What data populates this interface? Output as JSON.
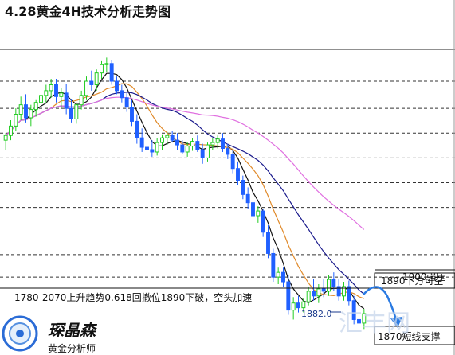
{
  "title": "4.28黄金4H技术分析走势图",
  "annotations": {
    "trend_note": "1780-2070上升趋势0.618回撤位1890下破，空头加速",
    "resistance_1900": "1900强压",
    "resistance_1890": "1890下方可空",
    "support_1870": "1870短线支撑",
    "low_label": "1882.0"
  },
  "branding": {
    "logo_name": "琛晶森",
    "logo_subtitle": "黄金分析师",
    "watermark": "汇丰网"
  },
  "colors": {
    "bull": "#22cc22",
    "bear": "#2060ff",
    "ma_short": "#111111",
    "ma_mid": "#e08a2a",
    "ma_long": "#1a1a8c",
    "ma_slow": "#e070e0",
    "arrow": "#2a7ae2"
  },
  "chart_data": {
    "type": "candlestick",
    "candles": [
      {
        "o": 1908,
        "h": 1914,
        "l": 1900,
        "c": 1912
      },
      {
        "o": 1912,
        "h": 1925,
        "l": 1908,
        "c": 1920
      },
      {
        "o": 1920,
        "h": 1935,
        "l": 1916,
        "c": 1930
      },
      {
        "o": 1930,
        "h": 1945,
        "l": 1925,
        "c": 1938
      },
      {
        "o": 1938,
        "h": 1947,
        "l": 1923,
        "c": 1927
      },
      {
        "o": 1927,
        "h": 1938,
        "l": 1920,
        "c": 1934
      },
      {
        "o": 1934,
        "h": 1942,
        "l": 1928,
        "c": 1940
      },
      {
        "o": 1940,
        "h": 1952,
        "l": 1935,
        "c": 1946
      },
      {
        "o": 1946,
        "h": 1955,
        "l": 1940,
        "c": 1950
      },
      {
        "o": 1950,
        "h": 1960,
        "l": 1944,
        "c": 1955
      },
      {
        "o": 1955,
        "h": 1960,
        "l": 1940,
        "c": 1945
      },
      {
        "o": 1945,
        "h": 1952,
        "l": 1935,
        "c": 1948
      },
      {
        "o": 1948,
        "h": 1956,
        "l": 1930,
        "c": 1935
      },
      {
        "o": 1935,
        "h": 1943,
        "l": 1923,
        "c": 1926
      },
      {
        "o": 1926,
        "h": 1940,
        "l": 1922,
        "c": 1938
      },
      {
        "o": 1938,
        "h": 1950,
        "l": 1934,
        "c": 1946
      },
      {
        "o": 1946,
        "h": 1962,
        "l": 1942,
        "c": 1958
      },
      {
        "o": 1958,
        "h": 1967,
        "l": 1950,
        "c": 1955
      },
      {
        "o": 1955,
        "h": 1968,
        "l": 1950,
        "c": 1965
      },
      {
        "o": 1965,
        "h": 1975,
        "l": 1960,
        "c": 1972
      },
      {
        "o": 1972,
        "h": 1978,
        "l": 1966,
        "c": 1973
      },
      {
        "o": 1973,
        "h": 1976,
        "l": 1955,
        "c": 1958
      },
      {
        "o": 1958,
        "h": 1962,
        "l": 1947,
        "c": 1950
      },
      {
        "o": 1950,
        "h": 1955,
        "l": 1940,
        "c": 1944
      },
      {
        "o": 1944,
        "h": 1948,
        "l": 1932,
        "c": 1936
      },
      {
        "o": 1936,
        "h": 1942,
        "l": 1920,
        "c": 1924
      },
      {
        "o": 1924,
        "h": 1930,
        "l": 1905,
        "c": 1910
      },
      {
        "o": 1910,
        "h": 1918,
        "l": 1898,
        "c": 1902
      },
      {
        "o": 1902,
        "h": 1910,
        "l": 1895,
        "c": 1900
      },
      {
        "o": 1900,
        "h": 1908,
        "l": 1894,
        "c": 1898
      },
      {
        "o": 1898,
        "h": 1910,
        "l": 1895,
        "c": 1906
      },
      {
        "o": 1906,
        "h": 1913,
        "l": 1900,
        "c": 1910
      },
      {
        "o": 1910,
        "h": 1915,
        "l": 1904,
        "c": 1912
      },
      {
        "o": 1912,
        "h": 1916,
        "l": 1906,
        "c": 1908
      },
      {
        "o": 1908,
        "h": 1914,
        "l": 1900,
        "c": 1904
      },
      {
        "o": 1904,
        "h": 1908,
        "l": 1896,
        "c": 1898
      },
      {
        "o": 1898,
        "h": 1906,
        "l": 1894,
        "c": 1903
      },
      {
        "o": 1903,
        "h": 1910,
        "l": 1899,
        "c": 1907
      },
      {
        "o": 1907,
        "h": 1912,
        "l": 1898,
        "c": 1900
      },
      {
        "o": 1900,
        "h": 1905,
        "l": 1888,
        "c": 1893
      },
      {
        "o": 1893,
        "h": 1906,
        "l": 1890,
        "c": 1904
      },
      {
        "o": 1904,
        "h": 1910,
        "l": 1900,
        "c": 1906
      },
      {
        "o": 1906,
        "h": 1912,
        "l": 1901,
        "c": 1909
      },
      {
        "o": 1909,
        "h": 1914,
        "l": 1898,
        "c": 1901
      },
      {
        "o": 1901,
        "h": 1905,
        "l": 1892,
        "c": 1896
      },
      {
        "o": 1896,
        "h": 1900,
        "l": 1880,
        "c": 1884
      },
      {
        "o": 1884,
        "h": 1890,
        "l": 1870,
        "c": 1874
      },
      {
        "o": 1874,
        "h": 1878,
        "l": 1858,
        "c": 1862
      },
      {
        "o": 1862,
        "h": 1868,
        "l": 1850,
        "c": 1855
      },
      {
        "o": 1855,
        "h": 1860,
        "l": 1840,
        "c": 1844
      },
      {
        "o": 1844,
        "h": 1852,
        "l": 1838,
        "c": 1848
      },
      {
        "o": 1848,
        "h": 1850,
        "l": 1826,
        "c": 1830
      },
      {
        "o": 1830,
        "h": 1836,
        "l": 1808,
        "c": 1812
      },
      {
        "o": 1812,
        "h": 1816,
        "l": 1788,
        "c": 1792
      },
      {
        "o": 1792,
        "h": 1800,
        "l": 1786,
        "c": 1796
      },
      {
        "o": 1796,
        "h": 1800,
        "l": 1784,
        "c": 1788
      },
      {
        "o": 1788,
        "h": 1794,
        "l": 1760,
        "c": 1764
      },
      {
        "o": 1764,
        "h": 1775,
        "l": 1756,
        "c": 1770
      },
      {
        "o": 1770,
        "h": 1776,
        "l": 1762,
        "c": 1766
      },
      {
        "o": 1766,
        "h": 1774,
        "l": 1762,
        "c": 1771
      },
      {
        "o": 1771,
        "h": 1784,
        "l": 1768,
        "c": 1780
      },
      {
        "o": 1780,
        "h": 1790,
        "l": 1772,
        "c": 1776
      },
      {
        "o": 1776,
        "h": 1786,
        "l": 1770,
        "c": 1782
      },
      {
        "o": 1782,
        "h": 1790,
        "l": 1775,
        "c": 1780
      },
      {
        "o": 1780,
        "h": 1794,
        "l": 1776,
        "c": 1790
      },
      {
        "o": 1790,
        "h": 1796,
        "l": 1780,
        "c": 1784
      },
      {
        "o": 1784,
        "h": 1790,
        "l": 1772,
        "c": 1776
      },
      {
        "o": 1776,
        "h": 1788,
        "l": 1772,
        "c": 1784
      },
      {
        "o": 1784,
        "h": 1789,
        "l": 1768,
        "c": 1772
      },
      {
        "o": 1772,
        "h": 1776,
        "l": 1752,
        "c": 1756
      },
      {
        "o": 1756,
        "h": 1762,
        "l": 1750,
        "c": 1753
      },
      {
        "o": 1753,
        "h": 1765,
        "l": 1748,
        "c": 1761
      }
    ],
    "moving_averages": [
      {
        "period": 5,
        "color_key": "ma_short"
      },
      {
        "period": 10,
        "color_key": "ma_mid"
      },
      {
        "period": 20,
        "color_key": "ma_long"
      },
      {
        "period": 40,
        "color_key": "ma_slow"
      }
    ],
    "horizontal_levels": [
      1958,
      1935,
      1914,
      1893,
      1872,
      1851,
      1811,
      1792
    ],
    "ylim": [
      1730,
      1985
    ],
    "grid": true
  }
}
